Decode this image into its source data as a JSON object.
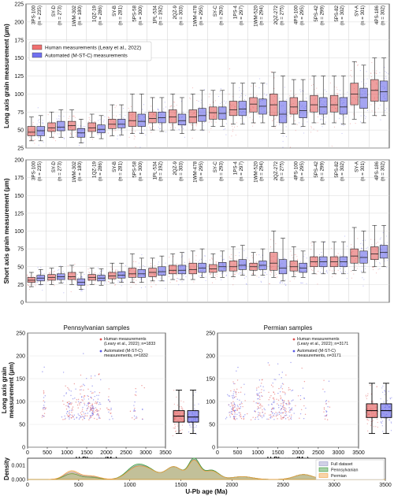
{
  "chart_data": [
    {
      "type": "box",
      "id": "long",
      "ylabel": "Long axis grain measurement (µm)",
      "ylim": [
        25,
        225
      ],
      "yticks": [
        25,
        50,
        75,
        100,
        125,
        150,
        175,
        200,
        225
      ],
      "legend": {
        "placement": "top-left",
        "entries": [
          {
            "label": "Human measurements (Leary et al., 2022)",
            "color": "#f07070"
          },
          {
            "label": "Automated (M-ST-C) measurements",
            "color": "#7070f0"
          }
        ]
      },
      "samples": [
        {
          "name": "3PS-100",
          "n": "(n = 235)"
        },
        {
          "name": "SY-D",
          "n": "(n = 273)"
        },
        {
          "name": "1WM-302",
          "n": "(n = 180)"
        },
        {
          "name": "1QZ-19",
          "n": "(n = 286)"
        },
        {
          "name": "SY-B",
          "n": "(n = 281)"
        },
        {
          "name": "5PS-58",
          "n": "(n = 300)"
        },
        {
          "name": "1PL-534",
          "n": "(n = 192)"
        },
        {
          "name": "2QZ-9",
          "n": "(n = 303)"
        },
        {
          "name": "1WM-478",
          "n": "(n = 295)"
        },
        {
          "name": "SY-C",
          "n": "(n = 293)"
        },
        {
          "name": "1PS-4",
          "n": "(n = 297)"
        },
        {
          "name": "1WM-520",
          "n": "(n = 294)"
        },
        {
          "name": "2QZ-272",
          "n": "(n = 275)"
        },
        {
          "name": "4PS-100",
          "n": "(n = 295)"
        },
        {
          "name": "5PS-42",
          "n": "(n = 299)"
        },
        {
          "name": "5PS-82",
          "n": "(n = 302)"
        },
        {
          "name": "SY-A",
          "n": "(n = 301)"
        },
        {
          "name": "4PS-186",
          "n": "(n = 302)"
        }
      ],
      "series": [
        {
          "name": "Human measurements (Leary et al., 2022)",
          "color": "#e05050",
          "boxes": [
            [
              35,
              42,
              47,
              55,
              68
            ],
            [
              40,
              48,
              53,
              60,
              75
            ],
            [
              40,
              50,
              56,
              62,
              78
            ],
            [
              40,
              48,
              53,
              60,
              72
            ],
            [
              42,
              52,
              58,
              65,
              85
            ],
            [
              45,
              55,
              63,
              75,
              100
            ],
            [
              50,
              60,
              66,
              75,
              95
            ],
            [
              50,
              60,
              68,
              78,
              100
            ],
            [
              50,
              60,
              68,
              78,
              100
            ],
            [
              55,
              65,
              74,
              82,
              105
            ],
            [
              58,
              70,
              78,
              90,
              115
            ],
            [
              60,
              75,
              86,
              95,
              115
            ],
            [
              55,
              70,
              85,
              100,
              130
            ],
            [
              58,
              72,
              82,
              95,
              120
            ],
            [
              60,
              75,
              85,
              98,
              125
            ],
            [
              60,
              75,
              85,
              98,
              125
            ],
            [
              65,
              85,
              100,
              115,
              145
            ],
            [
              70,
              90,
              105,
              120,
              150
            ]
          ]
        },
        {
          "name": "Automated (M-ST-C) measurements",
          "color": "#5a5ae6",
          "boxes": [
            [
              35,
              42,
              49,
              55,
              70
            ],
            [
              40,
              49,
              54,
              62,
              78
            ],
            [
              32,
              40,
              46,
              52,
              65
            ],
            [
              38,
              46,
              51,
              57,
              70
            ],
            [
              43,
              53,
              58,
              65,
              85
            ],
            [
              45,
              55,
              62,
              72,
              100
            ],
            [
              48,
              60,
              67,
              75,
              95
            ],
            [
              45,
              57,
              63,
              72,
              95
            ],
            [
              50,
              62,
              70,
              80,
              105
            ],
            [
              55,
              65,
              73,
              82,
              105
            ],
            [
              58,
              70,
              79,
              90,
              115
            ],
            [
              60,
              72,
              83,
              93,
              115
            ],
            [
              45,
              60,
              72,
              90,
              125
            ],
            [
              55,
              67,
              77,
              90,
              120
            ],
            [
              58,
              72,
              82,
              95,
              125
            ],
            [
              58,
              72,
              82,
              95,
              125
            ],
            [
              60,
              80,
              95,
              108,
              140
            ],
            [
              70,
              90,
              103,
              118,
              150
            ]
          ]
        }
      ]
    },
    {
      "type": "box",
      "id": "short",
      "ylabel": "Short axis grain measurement (µm)",
      "ylim": [
        0,
        200
      ],
      "yticks": [
        0,
        25,
        50,
        75,
        100,
        125,
        150,
        175,
        200
      ],
      "samples": [
        {
          "name": "3PS-100",
          "n": "(n = 235)"
        },
        {
          "name": "SY-D",
          "n": "(n = 273)"
        },
        {
          "name": "1WM-302",
          "n": "(n = 180)"
        },
        {
          "name": "1QZ-19",
          "n": "(n = 286)"
        },
        {
          "name": "SY-B",
          "n": "(n = 281)"
        },
        {
          "name": "5PS-58",
          "n": "(n = 300)"
        },
        {
          "name": "1PL-534",
          "n": "(n = 192)"
        },
        {
          "name": "2QZ-9",
          "n": "(n = 303)"
        },
        {
          "name": "1WM-478",
          "n": "(n = 295)"
        },
        {
          "name": "SY-C",
          "n": "(n = 293)"
        },
        {
          "name": "1PS-4",
          "n": "(n = 297)"
        },
        {
          "name": "1WM-520",
          "n": "(n = 294)"
        },
        {
          "name": "2QZ-272",
          "n": "(n = 275)"
        },
        {
          "name": "4PS-100",
          "n": "(n = 295)"
        },
        {
          "name": "5PS-42",
          "n": "(n = 299)"
        },
        {
          "name": "5PS-82",
          "n": "(n = 302)"
        },
        {
          "name": "SY-A",
          "n": "(n = 301)"
        },
        {
          "name": "4PS-186",
          "n": "(n = 302)"
        }
      ],
      "series": [
        {
          "name": "Human measurements (Leary et al., 2022)",
          "color": "#e05050",
          "boxes": [
            [
              22,
              28,
              31,
              35,
              42
            ],
            [
              25,
              31,
              35,
              39,
              48
            ],
            [
              25,
              32,
              36,
              42,
              52
            ],
            [
              25,
              31,
              35,
              39,
              48
            ],
            [
              27,
              33,
              37,
              42,
              55
            ],
            [
              28,
              35,
              40,
              48,
              68
            ],
            [
              30,
              36,
              42,
              48,
              62
            ],
            [
              32,
              40,
              45,
              52,
              68
            ],
            [
              32,
              40,
              46,
              55,
              72
            ],
            [
              35,
              42,
              47,
              53,
              68
            ],
            [
              36,
              44,
              50,
              58,
              78
            ],
            [
              38,
              45,
              50,
              55,
              70
            ],
            [
              35,
              45,
              55,
              70,
              100
            ],
            [
              36,
              44,
              50,
              58,
              78
            ],
            [
              40,
              50,
              57,
              64,
              85
            ],
            [
              40,
              50,
              57,
              64,
              85
            ],
            [
              45,
              55,
              65,
              75,
              105
            ],
            [
              50,
              60,
              68,
              78,
              108
            ]
          ]
        },
        {
          "name": "Automated (M-ST-C) measurements",
          "color": "#5a5ae6",
          "boxes": [
            [
              25,
              30,
              34,
              38,
              46
            ],
            [
              27,
              32,
              36,
              40,
              50
            ],
            [
              18,
              24,
              28,
              33,
              42
            ],
            [
              24,
              30,
              34,
              38,
              47
            ],
            [
              28,
              34,
              38,
              43,
              55
            ],
            [
              28,
              35,
              40,
              46,
              62
            ],
            [
              30,
              38,
              43,
              50,
              65
            ],
            [
              32,
              40,
              45,
              52,
              70
            ],
            [
              35,
              42,
              48,
              55,
              75
            ],
            [
              35,
              44,
              50,
              56,
              72
            ],
            [
              38,
              46,
              52,
              60,
              80
            ],
            [
              38,
              46,
              52,
              58,
              75
            ],
            [
              30,
              40,
              48,
              60,
              90
            ],
            [
              35,
              42,
              48,
              55,
              72
            ],
            [
              40,
              50,
              57,
              64,
              85
            ],
            [
              40,
              50,
              57,
              64,
              85
            ],
            [
              42,
              55,
              63,
              72,
              100
            ],
            [
              50,
              62,
              70,
              80,
              108
            ]
          ]
        }
      ]
    },
    {
      "type": "scatter",
      "id": "penn",
      "title": "Pennsylvanian samples",
      "xlabel": "U-Pb age (Ma)",
      "ylabel": "Long axis grain\nmeasurement (µm)",
      "xlim": [
        0,
        3500
      ],
      "ylim": [
        0,
        250
      ],
      "xticks": [
        0,
        500,
        1000,
        1500,
        2000,
        2500,
        3000,
        3500
      ],
      "yticks": [
        0,
        50,
        100,
        150,
        200,
        250
      ],
      "clusters": [
        [
          420,
          60,
          8
        ],
        [
          1050,
          150,
          22
        ],
        [
          1400,
          150,
          20
        ],
        [
          1620,
          90,
          22
        ],
        [
          1800,
          90,
          12
        ],
        [
          2100,
          60,
          6
        ],
        [
          2700,
          70,
          6
        ],
        [
          2950,
          40,
          2
        ]
      ],
      "legend": {
        "placement": "top-right",
        "entries": [
          {
            "label": "Human measurements\n(Leary et al., 2022); n=1833",
            "color": "#e05050"
          },
          {
            "label": "Automated (M-ST-C)\nmeasurements, n=1832",
            "color": "#5a5ae6"
          }
        ]
      },
      "boxes": [
        {
          "color": "#e05050",
          "stats": [
            30,
            55,
            68,
            80,
            125
          ]
        },
        {
          "color": "#5a5ae6",
          "stats": [
            30,
            55,
            66,
            80,
            125
          ]
        }
      ]
    },
    {
      "type": "scatter",
      "id": "perm",
      "title": "Permian samples",
      "xlabel": "U-Pb age (Ma)",
      "xlim": [
        0,
        3500
      ],
      "ylim": [
        0,
        250
      ],
      "xticks": [
        0,
        500,
        1000,
        1500,
        2000,
        2500,
        3000,
        3500
      ],
      "yticks": [
        0,
        50,
        100,
        150,
        200,
        250
      ],
      "clusters": [
        [
          400,
          120,
          28
        ],
        [
          600,
          100,
          10
        ],
        [
          1050,
          130,
          22
        ],
        [
          1400,
          120,
          18
        ],
        [
          1620,
          90,
          22
        ],
        [
          1800,
          90,
          12
        ],
        [
          2700,
          80,
          8
        ],
        [
          2100,
          70,
          5
        ]
      ],
      "legend": {
        "placement": "top-right",
        "entries": [
          {
            "label": "Human measurements\n(Leary et al., 2022); n=3171",
            "color": "#e05050"
          },
          {
            "label": "Automated (M-ST-C)\nmeasurements, n=3171",
            "color": "#5a5ae6"
          }
        ]
      },
      "boxes": [
        {
          "color": "#e05050",
          "stats": [
            30,
            65,
            80,
            95,
            140
          ]
        },
        {
          "color": "#5a5ae6",
          "stats": [
            30,
            65,
            80,
            95,
            140
          ]
        }
      ]
    },
    {
      "type": "area",
      "id": "density",
      "xlabel": "U-Pb age (Ma)",
      "ylabel": "Density",
      "xlim": [
        0,
        3500
      ],
      "ylim": [
        0,
        0.0015
      ],
      "xticks": [
        0,
        500,
        1000,
        1500,
        2000,
        2500,
        3000,
        3500
      ],
      "yticks": [
        0,
        0.001
      ],
      "ytick_labels": [
        "0.000",
        "0.001"
      ],
      "legend": {
        "placement": "top-right",
        "entries": [
          {
            "label": "Full dataset",
            "color": "#9a9ac8"
          },
          {
            "label": "Pennsylvanian",
            "color": "#3a9a3a"
          },
          {
            "label": "Permian",
            "color": "#f0a040"
          }
        ]
      },
      "series": [
        {
          "name": "Full dataset",
          "color": "#8f8fc0",
          "peaks": [
            [
              430,
              0.0005,
              70
            ],
            [
              620,
              0.0002,
              80
            ],
            [
              1060,
              0.00085,
              90
            ],
            [
              1200,
              0.0005,
              80
            ],
            [
              1430,
              0.0009,
              80
            ],
            [
              1630,
              0.00135,
              55
            ],
            [
              1800,
              0.00065,
              70
            ],
            [
              2100,
              0.0002,
              100
            ],
            [
              2700,
              0.00035,
              90
            ]
          ]
        },
        {
          "name": "Pennsylvanian",
          "color": "#3a9a3a",
          "peaks": [
            [
              430,
              0.0004,
              70
            ],
            [
              620,
              0.00015,
              80
            ],
            [
              1060,
              0.00095,
              90
            ],
            [
              1200,
              0.0005,
              80
            ],
            [
              1430,
              0.0009,
              80
            ],
            [
              1630,
              0.00145,
              55
            ],
            [
              1800,
              0.00065,
              70
            ],
            [
              2100,
              0.0002,
              100
            ],
            [
              2700,
              0.00035,
              90
            ]
          ]
        },
        {
          "name": "Permian",
          "color": "#f0a040",
          "peaks": [
            [
              430,
              0.0006,
              70
            ],
            [
              620,
              0.00025,
              80
            ],
            [
              1060,
              0.0008,
              90
            ],
            [
              1200,
              0.0005,
              80
            ],
            [
              1430,
              0.0009,
              80
            ],
            [
              1630,
              0.0013,
              55
            ],
            [
              1800,
              0.0006,
              70
            ],
            [
              2100,
              0.0002,
              100
            ],
            [
              2700,
              0.00035,
              90
            ]
          ]
        }
      ]
    }
  ]
}
